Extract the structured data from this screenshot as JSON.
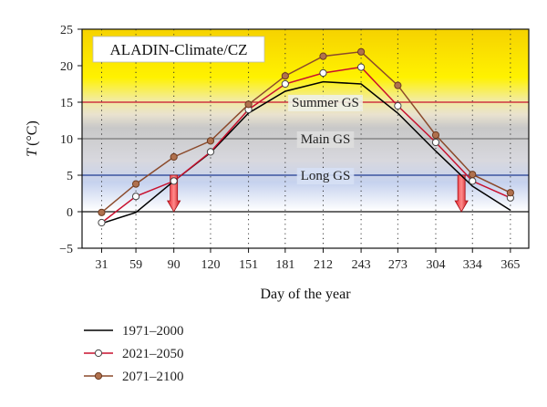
{
  "chart_data": {
    "type": "line",
    "title": "ALADIN-Climate/CZ",
    "xlabel": "Day of the year",
    "ylabel_main": "T",
    "ylabel_unit": "(°C)",
    "x": [
      31,
      59,
      90,
      120,
      151,
      181,
      212,
      243,
      273,
      304,
      334,
      365
    ],
    "xlim": [
      15,
      380
    ],
    "ylim": [
      -5,
      25
    ],
    "yticks": [
      -5,
      0,
      5,
      10,
      15,
      20,
      25
    ],
    "grid": "dotted vertical lines",
    "series": [
      {
        "name": "1971–2000",
        "color": "#000000",
        "marker": "none",
        "points": [
          [
            31,
            -1.6
          ],
          [
            59,
            -0.1
          ],
          [
            90,
            4.2
          ],
          [
            120,
            8.1
          ],
          [
            151,
            13.5
          ],
          [
            181,
            16.5
          ],
          [
            212,
            17.8
          ],
          [
            243,
            17.5
          ],
          [
            273,
            13.5
          ],
          [
            304,
            8.3
          ],
          [
            334,
            3.5
          ],
          [
            365,
            0.2
          ]
        ]
      },
      {
        "name": "2021–2050",
        "color": "#c8102e",
        "marker": "white-circle",
        "points": [
          [
            31,
            -1.5
          ],
          [
            59,
            2.1
          ],
          [
            90,
            4.2
          ],
          [
            120,
            8.2
          ],
          [
            151,
            14.0
          ],
          [
            181,
            17.5
          ],
          [
            212,
            19.0
          ],
          [
            243,
            19.8
          ],
          [
            273,
            14.5
          ],
          [
            304,
            9.5
          ],
          [
            334,
            4.2
          ],
          [
            365,
            1.9
          ]
        ]
      },
      {
        "name": "2071–2100",
        "color": "#8b4a2b",
        "marker": "brown-circle",
        "points": [
          [
            31,
            -0.1
          ],
          [
            59,
            3.8
          ],
          [
            90,
            7.5
          ],
          [
            120,
            9.7
          ],
          [
            151,
            14.7
          ],
          [
            181,
            18.6
          ],
          [
            212,
            21.3
          ],
          [
            243,
            21.9
          ],
          [
            273,
            17.3
          ],
          [
            304,
            10.5
          ],
          [
            334,
            5.1
          ],
          [
            365,
            2.6
          ]
        ]
      }
    ],
    "thresholds": [
      {
        "value": 15,
        "label": "Summer GS",
        "color": "#c8102e"
      },
      {
        "value": 10,
        "label": "Main GS",
        "color": "#777777"
      },
      {
        "value": 5,
        "label": "Long GS",
        "color": "#1f3a93"
      }
    ],
    "arrows": [
      {
        "x": 90,
        "from": 5,
        "to": 0,
        "color": "#e8202a"
      },
      {
        "x": 325,
        "from": 5,
        "to": 0,
        "color": "#e8202a"
      }
    ]
  }
}
